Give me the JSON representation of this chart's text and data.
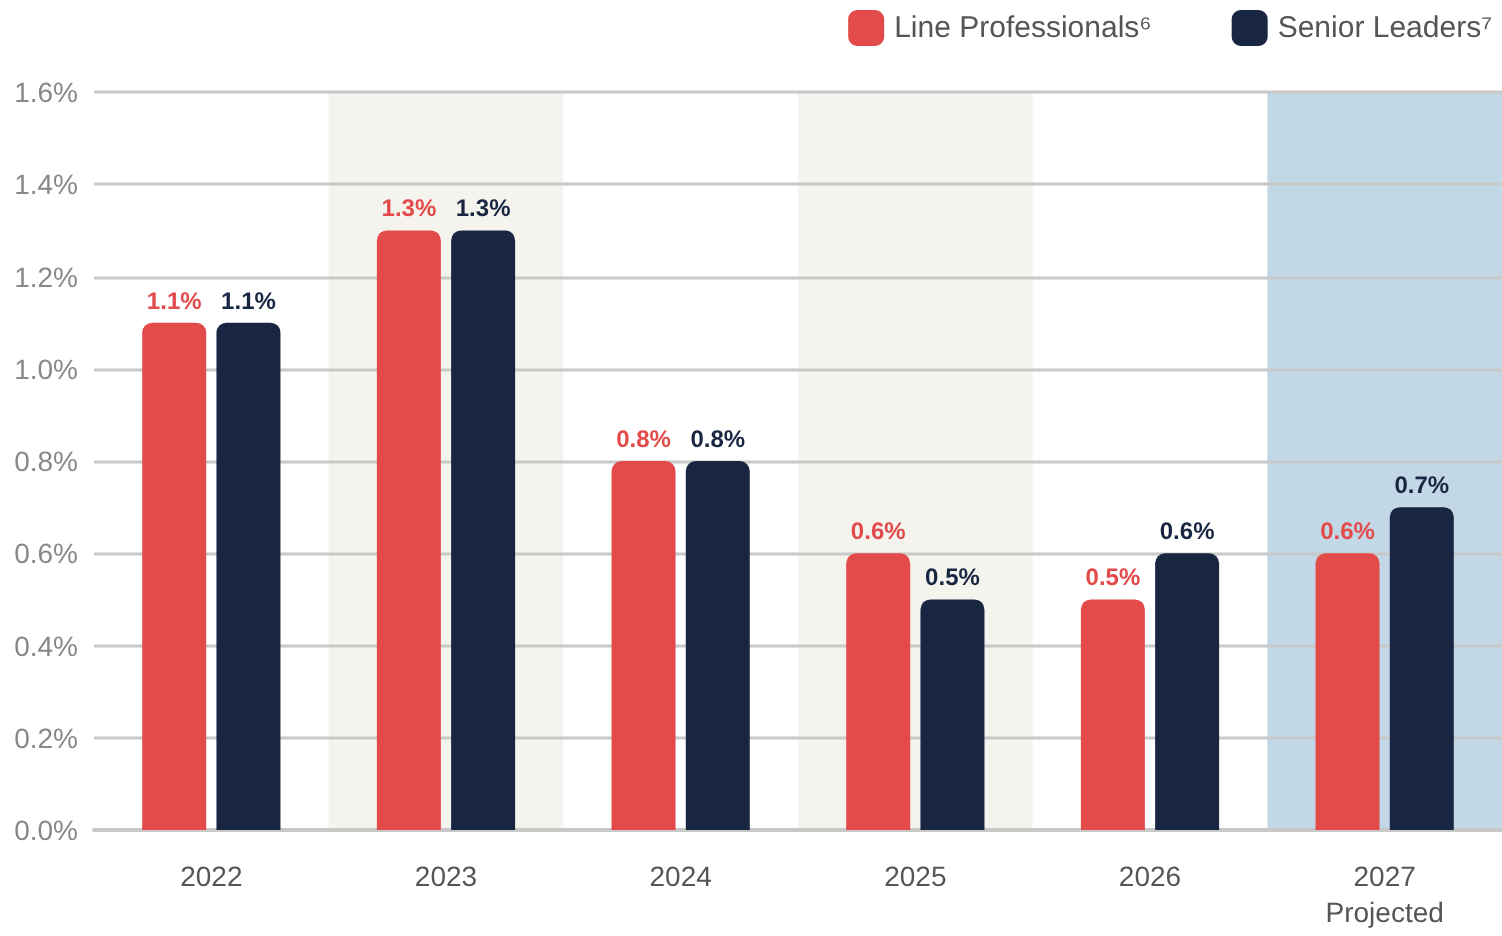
{
  "chart_data": {
    "type": "bar",
    "categories": [
      "2022",
      "2023",
      "2024",
      "2025",
      "2026",
      "2027\nProjected"
    ],
    "series": [
      {
        "name": "Line Professionals⁶",
        "color": "#e34a4a",
        "values": [
          1.1,
          1.3,
          0.8,
          0.6,
          0.5,
          0.6
        ],
        "value_labels": [
          "1.1%",
          "1.3%",
          "0.8%",
          "0.6%",
          "0.5%",
          "0.6%"
        ]
      },
      {
        "name": "Senior Leaders⁷",
        "color": "#182642",
        "values": [
          1.1,
          1.3,
          0.8,
          0.5,
          0.6,
          0.7
        ],
        "value_labels": [
          "1.1%",
          "1.3%",
          "0.8%",
          "0.5%",
          "0.6%",
          "0.7%"
        ]
      }
    ],
    "ylim": [
      0,
      1.6
    ],
    "yticks": [
      {
        "value": 0,
        "label": "0.0%"
      },
      {
        "value": 0.2,
        "label": "0.2%"
      },
      {
        "value": 0.4,
        "label": "0.4%"
      },
      {
        "value": 0.6,
        "label": "0.6%"
      },
      {
        "value": 0.8,
        "label": "0.8%"
      },
      {
        "value": 1.0,
        "label": "1.0%"
      },
      {
        "value": 1.2,
        "label": "1.2%"
      },
      {
        "value": 1.4,
        "label": "1.4%"
      },
      {
        "value": 1.6,
        "label": "1.6%"
      }
    ],
    "bands": [
      {
        "axis": "x",
        "from": "2023",
        "to": "2023",
        "color": "#f4f3ee"
      },
      {
        "axis": "x",
        "from": "2025",
        "to": "2025",
        "color": "#f4f3ee"
      },
      {
        "axis": "x",
        "from": "2027\nProjected",
        "to": "2027\nProjected",
        "color": "#c3d8e6"
      }
    ],
    "grid": "y",
    "legend": "top right"
  }
}
